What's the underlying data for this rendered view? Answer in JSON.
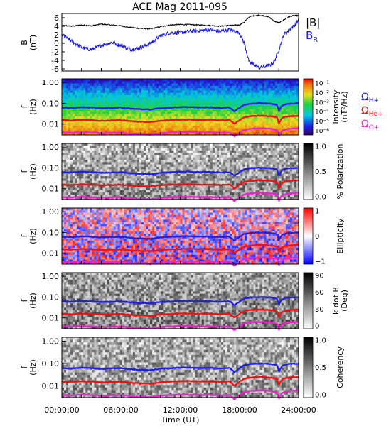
{
  "title": "ACE Mag 2011-095",
  "xaxis": {
    "label": "Time (UT)",
    "ticks": [
      "00:00:00",
      "06:00:00",
      "12:00:00",
      "18:00:00",
      "24:00:00"
    ],
    "range_hours": [
      0,
      24
    ]
  },
  "colors": {
    "B_total": "#000000",
    "B_R": "#1a1adc",
    "H_plus": "#1f1fe6",
    "He_plus": "#ee1111",
    "O_plus": "#ee22cc"
  },
  "panels": {
    "mag": {
      "ylabel_1": "B",
      "ylabel_2": "(nT)",
      "legend_total": "|B|",
      "legend_r_main": "B",
      "legend_r_sub": "R"
    },
    "intensity": {
      "ylabel_1": "f",
      "ylabel_2": "(Hz)",
      "cbar_label_1": "Intensity",
      "cbar_label_2": "(nT²/Hz)",
      "cbar_ticks": [
        "10⁻¹",
        "10⁻²",
        "10⁻³",
        "10⁻⁴",
        "10⁻⁵",
        "10⁻⁶"
      ],
      "legend_h_main": "Ω",
      "legend_h_sub": "H+",
      "legend_he_main": "Ω",
      "legend_he_sub": "He+",
      "legend_o_main": "Ω",
      "legend_o_sub": "O+"
    },
    "polarization": {
      "ylabel_1": "f",
      "ylabel_2": "(Hz)",
      "cbar_label": "% Polarization",
      "cbar_ticks": [
        "1.0",
        "0.5",
        "0.0"
      ]
    },
    "ellipticity": {
      "ylabel_1": "f",
      "ylabel_2": "(Hz)",
      "cbar_label": "Ellipticity",
      "cbar_ticks": [
        "1",
        "0",
        "−1"
      ]
    },
    "kdotb": {
      "ylabel_1": "f",
      "ylabel_2": "(Hz)",
      "cbar_label_1": "k dot B",
      "cbar_label_2": "(Deg)",
      "cbar_ticks": [
        "90",
        "60",
        "30",
        "0"
      ]
    },
    "coherency": {
      "ylabel_1": "f",
      "ylabel_2": "(Hz)",
      "cbar_label": "Coherency",
      "cbar_ticks": [
        "1.0",
        "0.5",
        "0.0"
      ]
    }
  },
  "freq_ticks": [
    "1.00",
    "0.10",
    "0.01"
  ],
  "chart_data": [
    {
      "type": "line",
      "panel": "mag",
      "ylabel": "B (nT)",
      "yticks": [
        6,
        4,
        2,
        0,
        -2,
        -4,
        -6
      ],
      "ylim": [
        -6.5,
        7
      ],
      "x_hours": [
        0,
        1,
        2,
        3,
        4,
        5,
        6,
        7,
        8,
        9,
        10,
        11,
        12,
        13,
        14,
        15,
        16,
        17,
        18,
        18.5,
        19,
        19.5,
        20,
        20.5,
        21,
        21.5,
        22,
        22.5,
        23,
        23.5,
        24
      ],
      "series": [
        {
          "name": "|B|",
          "values": [
            4.2,
            4.0,
            4.3,
            4.1,
            4.5,
            4.3,
            4.1,
            3.7,
            3.5,
            3.4,
            3.9,
            4.3,
            4.4,
            4.4,
            4.3,
            4.2,
            4.0,
            4.2,
            4.3,
            5.0,
            6.2,
            6.5,
            6.6,
            6.4,
            6.2,
            5.2,
            4.8,
            5.5,
            6.2,
            6.5,
            6.5
          ]
        },
        {
          "name": "B_R",
          "values": [
            2.0,
            0.5,
            -1.0,
            -1.5,
            -0.5,
            0.2,
            -0.5,
            -1.5,
            -1.0,
            0.0,
            1.8,
            2.5,
            2.5,
            2.8,
            3.0,
            3.2,
            2.8,
            3.2,
            2.5,
            0.0,
            -4.5,
            -5.0,
            -5.8,
            -5.5,
            -5.2,
            -4.5,
            -1.5,
            2.0,
            3.0,
            4.0,
            5.5
          ]
        }
      ]
    },
    {
      "type": "heatmap",
      "panel": "spectrogram-lines",
      "yaxis": "frequency (Hz), log scale",
      "ylim": [
        0.003,
        1.5
      ],
      "x_hours": [
        0,
        1,
        2,
        3,
        4,
        5,
        6,
        7,
        8,
        9,
        10,
        11,
        12,
        13,
        14,
        15,
        16,
        17,
        17.5,
        18,
        18.5,
        19,
        19.5,
        20,
        20.5,
        21,
        21.5,
        21.8,
        22,
        22.3,
        22.5,
        23,
        24
      ],
      "series": [
        {
          "name": "ΩH+",
          "values": [
            0.062,
            0.06,
            0.065,
            0.062,
            0.058,
            0.06,
            0.062,
            0.055,
            0.052,
            0.05,
            0.058,
            0.062,
            0.065,
            0.065,
            0.063,
            0.064,
            0.06,
            0.063,
            0.04,
            0.06,
            0.085,
            0.093,
            0.098,
            0.1,
            0.1,
            0.096,
            0.09,
            0.085,
            0.04,
            0.075,
            0.085,
            0.095,
            0.1
          ]
        },
        {
          "name": "ΩHe+",
          "values": [
            0.0155,
            0.015,
            0.0162,
            0.0155,
            0.0145,
            0.015,
            0.0155,
            0.0138,
            0.013,
            0.0125,
            0.0145,
            0.0155,
            0.0162,
            0.0162,
            0.0158,
            0.016,
            0.015,
            0.0158,
            0.01,
            0.015,
            0.0212,
            0.0232,
            0.0245,
            0.025,
            0.025,
            0.024,
            0.0225,
            0.0212,
            0.01,
            0.0188,
            0.0212,
            0.0238,
            0.025
          ]
        },
        {
          "name": "ΩO+",
          "values": [
            0.0039,
            0.0038,
            0.0041,
            0.0039,
            0.0036,
            0.0038,
            0.0039,
            0.0034,
            0.0033,
            0.0031,
            0.0036,
            0.0039,
            0.0041,
            0.0041,
            0.0039,
            0.004,
            0.0038,
            0.0039,
            0.0025,
            0.0038,
            0.0053,
            0.0058,
            0.0061,
            0.0063,
            0.0063,
            0.006,
            0.0056,
            0.0053,
            0.0025,
            0.0047,
            0.0053,
            0.0059,
            0.0063
          ]
        }
      ]
    }
  ]
}
